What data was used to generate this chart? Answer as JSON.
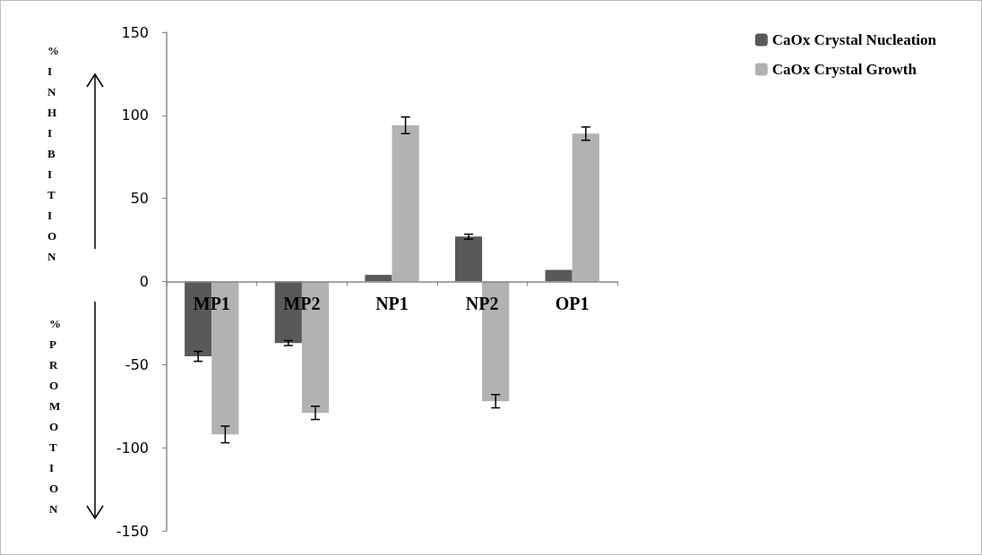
{
  "chart_data": {
    "type": "bar",
    "categories": [
      "MP1",
      "MP2",
      "NP1",
      "NP2",
      "OP1"
    ],
    "series": [
      {
        "name": "CaOx Crystal Nucleation",
        "color": "#595959",
        "values": [
          -45,
          -37,
          4,
          27,
          7
        ],
        "errors": [
          3,
          1.5,
          null,
          1.5,
          null
        ]
      },
      {
        "name": "CaOx Crystal Growth",
        "color": "#b2b2b2",
        "values": [
          -92,
          -79,
          94,
          -72,
          89
        ],
        "errors": [
          5,
          4,
          5,
          4,
          4
        ]
      }
    ],
    "ylim": [
      -150,
      150
    ],
    "yticks": [
      -150,
      -100,
      -50,
      0,
      50,
      100,
      150
    ],
    "grid": false,
    "legend": "top right",
    "annotations": [
      "%INHIBITION",
      "%PROMOTION"
    ]
  }
}
